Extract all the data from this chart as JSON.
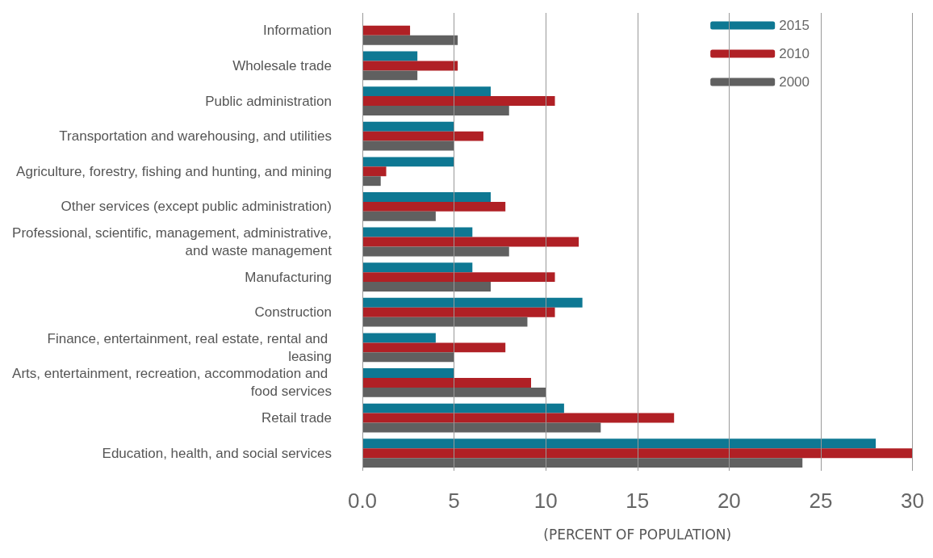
{
  "chart_data": {
    "type": "bar",
    "orientation": "horizontal",
    "xlabel": "(PERCENT OF POPULATION)",
    "categories": [
      "Information",
      "Wholesale trade",
      "Public administration",
      "Transportation and warehousing, and utilities",
      "Agriculture, forestry, fishing and hunting, and mining",
      "Other services (except public administration)",
      "Professional, scientific, management, administrative, and waste management",
      "Manufacturing",
      "Construction",
      "Finance, entertainment, real estate, rental and leasing",
      "Arts, entertainment, recreation, accommodation and food services",
      "Retail trade",
      "Education, health, and social services"
    ],
    "series": [
      {
        "name": "2015",
        "color": "#0e7893",
        "values": [
          null,
          3.0,
          7.0,
          5.0,
          5.0,
          7.0,
          6.0,
          6.0,
          12.0,
          4.0,
          5.0,
          11.0,
          28.0
        ]
      },
      {
        "name": "2010",
        "color": "#b02025",
        "values": [
          2.6,
          5.2,
          10.5,
          6.6,
          1.3,
          7.8,
          11.8,
          10.5,
          10.5,
          7.8,
          9.2,
          17.0,
          30.0
        ]
      },
      {
        "name": "2000",
        "color": "#606060",
        "values": [
          5.2,
          3.0,
          8.0,
          5.0,
          1.0,
          4.0,
          8.0,
          7.0,
          9.0,
          5.0,
          10.0,
          13.0,
          24.0
        ]
      }
    ],
    "xlim": [
      0,
      30
    ],
    "xticks": [
      {
        "value": 0,
        "label": "0.0"
      },
      5,
      10,
      15,
      20,
      25,
      30
    ],
    "grid": "x",
    "legend": "top right"
  }
}
